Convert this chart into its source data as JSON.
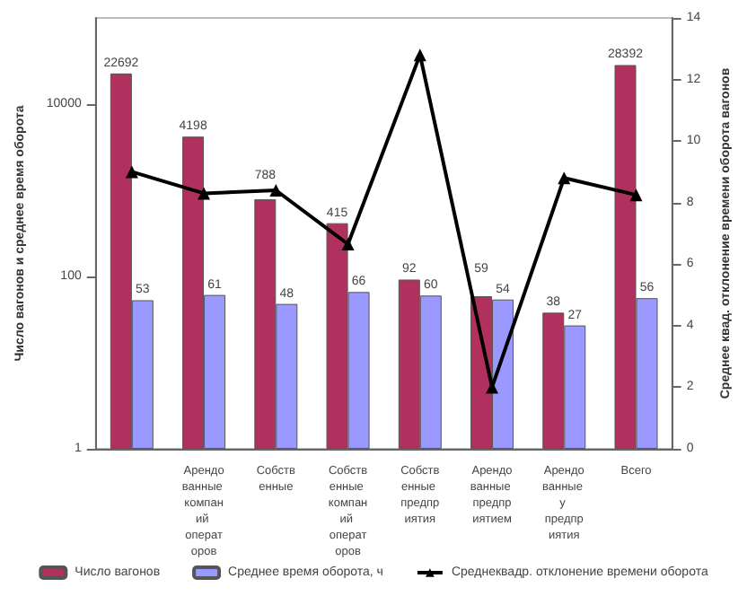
{
  "chart_data": {
    "type": "bar",
    "ylabel": "Число вагонов и среднее время оборота",
    "y2label": "Среднее квад. отклонение времени оборота вагонов",
    "categories": [
      null,
      "Арендованные компаний операторов",
      "Собственные",
      "Собственные компаний операторов",
      "Собственные предприятия",
      "Арендованные предприятием",
      "Арендованные у предприятия",
      "Всего"
    ],
    "series": [
      {
        "name": "Число вагонов",
        "color": "#b0305e",
        "values": [
          22692,
          4198,
          788,
          415,
          92,
          59,
          38,
          28392
        ],
        "value_labels": [
          "22692",
          "4198",
          "788",
          "415",
          "92",
          "59",
          "38",
          "28392"
        ]
      },
      {
        "name": "Среднее время оборота, ч",
        "color": "#9999ff",
        "values": [
          53,
          61,
          48,
          66,
          60,
          54,
          27,
          56
        ],
        "value_labels": [
          "53",
          "61",
          "48",
          "66",
          "60",
          "54",
          "27",
          "56"
        ]
      },
      {
        "name": "Среднеквадр. отклонение времени оборота",
        "type": "line",
        "axis": "y2",
        "color": "#000000",
        "marker": "triangle",
        "values": [
          9.0,
          8.3,
          8.4,
          6.65,
          12.8,
          2.0,
          8.8,
          8.25
        ]
      }
    ],
    "log": "y",
    "ylim": [
      1,
      100000
    ],
    "yticks": [
      1,
      100,
      10000
    ],
    "y2lim": [
      0,
      14
    ],
    "y2ticks": [
      0,
      2,
      4,
      6,
      8,
      10,
      12,
      14
    ],
    "legend": "bottom",
    "grid": false
  }
}
